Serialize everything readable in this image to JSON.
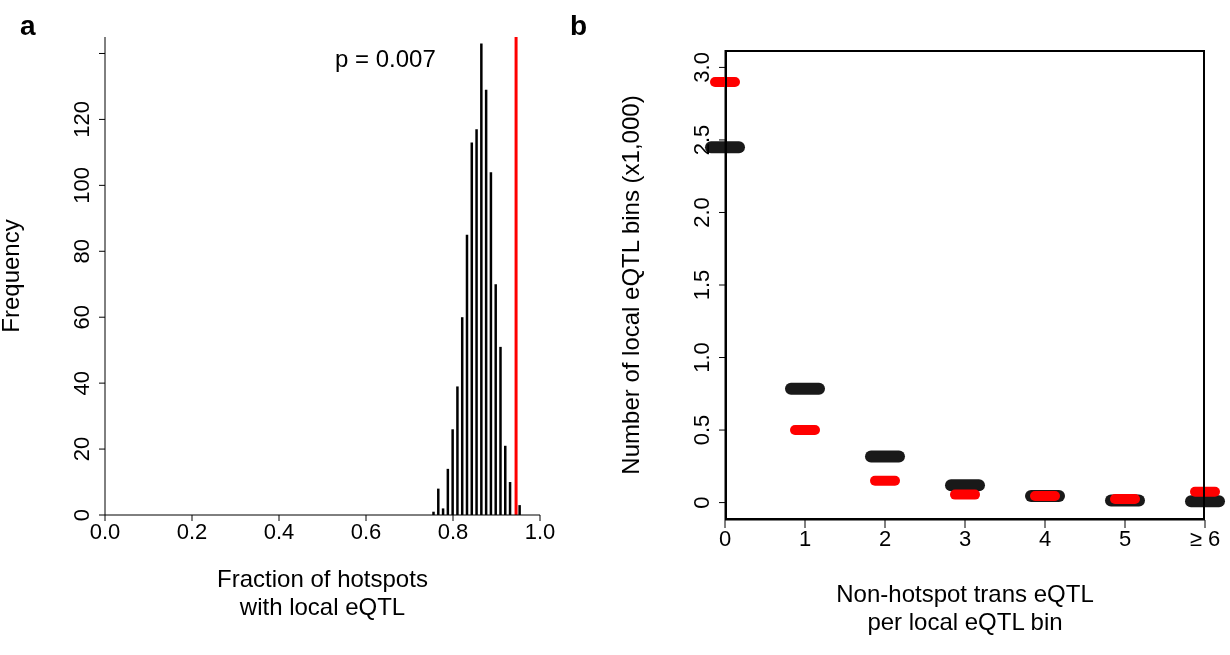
{
  "chart_data": [
    {
      "type": "histogram",
      "title": "a",
      "xlabel": "Fraction of hotspots\nwith local eQTL",
      "ylabel": "Frequency",
      "color": "#000000",
      "bins": [
        0.75,
        0.761,
        0.772,
        0.783,
        0.794,
        0.805,
        0.816,
        0.827,
        0.838,
        0.849,
        0.86,
        0.871,
        0.882,
        0.893,
        0.904,
        0.915,
        0.926,
        0.937,
        0.948,
        0.959
      ],
      "values": [
        1,
        8,
        2,
        14,
        26,
        39,
        60,
        85,
        113,
        117,
        143,
        129,
        104,
        70,
        51,
        21,
        10,
        null,
        3
      ],
      "xlim": [
        0,
        1
      ],
      "xticks": [
        {
          "value": 0,
          "label": "0.0"
        },
        {
          "value": 0.2,
          "label": "0.2"
        },
        {
          "value": 0.4,
          "label": "0.4"
        },
        {
          "value": 0.6,
          "label": "0.6"
        },
        {
          "value": 0.8,
          "label": "0.8"
        },
        {
          "value": 1,
          "label": "1.0"
        }
      ],
      "ylim": [
        0,
        145
      ],
      "yticks": [
        0,
        20,
        40,
        60,
        80,
        100,
        120,
        {
          "value": 140,
          "label": null
        }
      ],
      "ref_lines": [
        {
          "axis": "x",
          "value": 0.945,
          "color": "#ff0000"
        }
      ],
      "annotations": [
        "p = 0.007"
      ]
    },
    {
      "type": "scatter",
      "title": "b",
      "xlabel": "Non-hotspot trans eQTL\nper local eQTL bin",
      "ylabel": "Number of local eQTL bins (x1,000)",
      "categories": [
        "0",
        "1",
        "2",
        "3",
        "4",
        "5",
        "≥ 6"
      ],
      "series": [
        {
          "color": "#000000",
          "values": [
            2.45,
            0.785,
            0.318,
            0.12,
            0.045,
            0.015,
            0.01
          ]
        },
        {
          "color": "#ff0000",
          "values": [
            2.9,
            0.5,
            0.15,
            0.055,
            0.045,
            0.025,
            0.075
          ]
        }
      ],
      "ylim": [
        -0.12,
        3.12
      ],
      "yticks": [
        0,
        {
          "value": 0.5,
          "label": "0.5"
        },
        {
          "value": 1,
          "label": "1.0"
        },
        {
          "value": 1.5,
          "label": "1.5"
        },
        {
          "value": 2,
          "label": "2.0"
        },
        {
          "value": 2.5,
          "label": "2.5"
        },
        {
          "value": 3,
          "label": "3.0"
        }
      ]
    }
  ]
}
